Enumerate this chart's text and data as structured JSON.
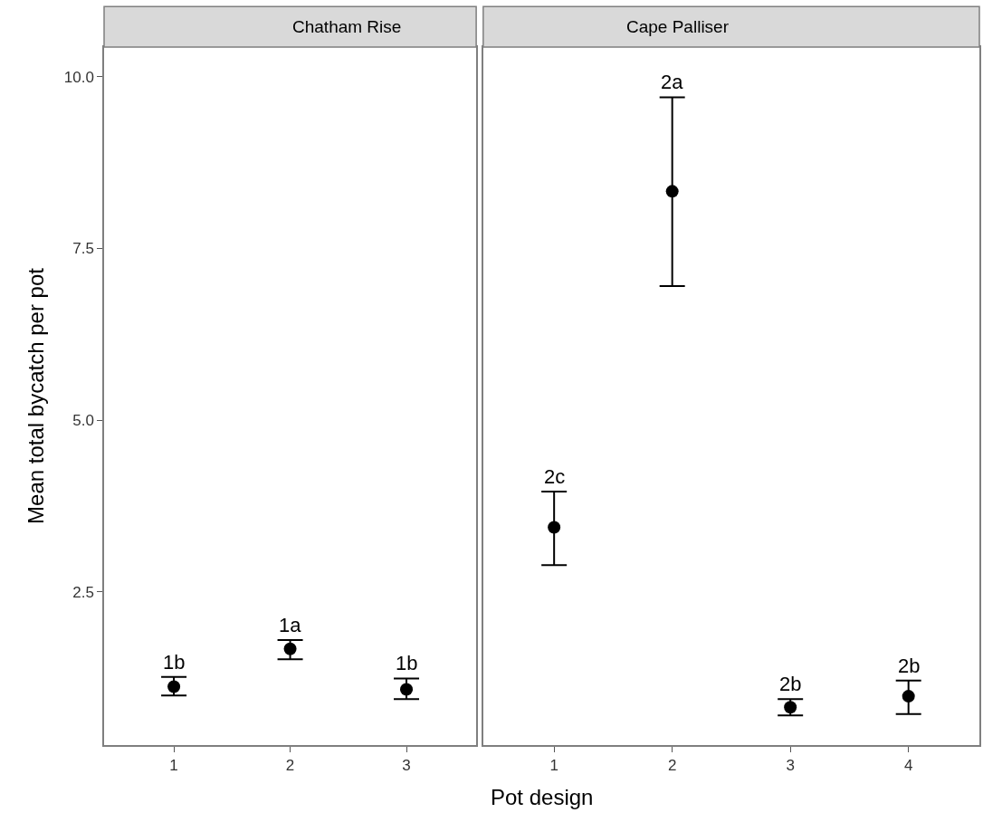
{
  "chart_data": [
    {
      "type": "scatter",
      "title": "Chatham Rise",
      "xlabel": "Pot design",
      "ylabel": "Mean total bycatch per pot",
      "categories": [
        "1",
        "2",
        "3"
      ],
      "series": [
        {
          "color": "#000000",
          "values": [
            1.12,
            1.67,
            1.08
          ],
          "errors": [
            [
              0.99,
              1.26
            ],
            [
              1.52,
              1.8
            ],
            [
              0.94,
              1.24
            ]
          ]
        }
      ],
      "ylim": [
        0.27,
        10.43
      ],
      "yticks": [
        {
          "value": 2.5,
          "label": "2.5"
        },
        {
          "value": 5,
          "label": "5.0"
        },
        {
          "value": 7.5,
          "label": "7.5"
        },
        {
          "value": 10,
          "label": "10.0"
        }
      ],
      "annotations": [
        {
          "text": "1b",
          "x": "1",
          "y": 1.26
        },
        {
          "text": "1a",
          "x": "2",
          "y": 1.8
        },
        {
          "text": "1b",
          "x": "3",
          "y": 1.24
        }
      ],
      "marker": "circle"
    },
    {
      "type": "scatter",
      "title": "Cape Palliser",
      "categories": [
        "1",
        "2",
        "3",
        "4"
      ],
      "series": [
        {
          "color": "#000000",
          "values": [
            3.44,
            8.33,
            0.82,
            0.98
          ],
          "errors": [
            [
              2.89,
              3.96
            ],
            [
              6.95,
              9.7
            ],
            [
              0.7,
              0.94
            ],
            [
              0.72,
              1.21
            ]
          ]
        }
      ],
      "ylim": [
        0.27,
        10.43
      ],
      "annotations": [
        {
          "text": "2c",
          "x": "1",
          "y": 3.96
        },
        {
          "text": "2a",
          "x": "2",
          "y": 9.7
        },
        {
          "text": "2b",
          "x": "3",
          "y": 0.94
        },
        {
          "text": "2b",
          "x": "4",
          "y": 1.21
        }
      ],
      "marker": "circle",
      "tick_labels": "x"
    }
  ]
}
